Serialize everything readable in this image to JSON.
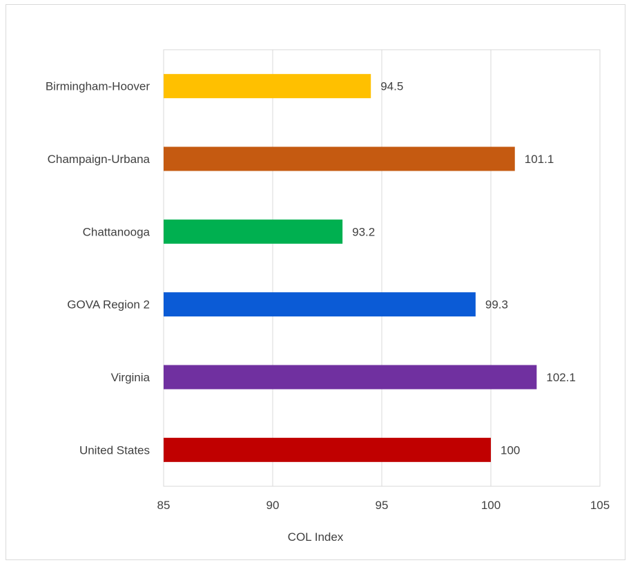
{
  "chart_data": {
    "type": "bar",
    "orientation": "horizontal",
    "categories": [
      "Birmingham-Hoover",
      "Champaign-Urbana",
      "Chattanooga",
      "GOVA Region 2",
      "Virginia",
      "United States"
    ],
    "values": [
      94.5,
      101.1,
      93.2,
      99.3,
      102.1,
      100
    ],
    "value_labels": [
      "94.5",
      "101.1",
      "93.2",
      "99.3",
      "102.1",
      "100"
    ],
    "colors": [
      "#FFC000",
      "#C55A11",
      "#00B050",
      "#0B5BD6",
      "#7030A0",
      "#C00000"
    ],
    "xlabel": "COL Index",
    "xlim": [
      85,
      105
    ],
    "xticks": [
      "85",
      "90",
      "95",
      "100",
      "105"
    ],
    "grid": "vertical",
    "legend": "none"
  }
}
